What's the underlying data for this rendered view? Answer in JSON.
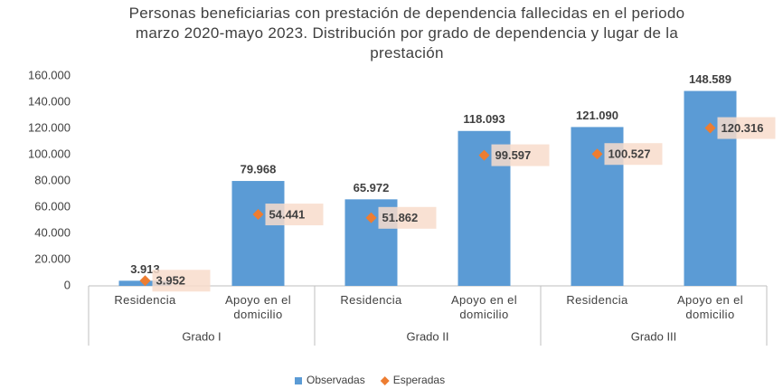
{
  "chart_data": {
    "type": "bar",
    "title": "Personas beneficiarias con prestación de dependencia fallecidas en el periodo marzo 2020-mayo 2023. Distribución por grado de dependencia y lugar de la prestación",
    "categories": [
      "Residencia",
      "Apoyo en el domicilio",
      "Residencia",
      "Apoyo en el domicilio",
      "Residencia",
      "Apoyo en el domicilio"
    ],
    "groups": [
      "Grado I",
      "Grado II",
      "Grado III"
    ],
    "series": [
      {
        "name": "Observadas",
        "color": "#5b9bd5",
        "mark": "bar",
        "values": [
          3913,
          79968,
          65972,
          118093,
          121090,
          148589
        ],
        "value_labels": [
          "3.913",
          "79.968",
          "65.972",
          "118.093",
          "121.090",
          "148.589"
        ]
      },
      {
        "name": "Esperadas",
        "color": "#ed7d31",
        "mark": "diamond",
        "values": [
          3952,
          54441,
          51862,
          99597,
          100527,
          120316
        ],
        "value_labels": [
          "3.952",
          "54.441",
          "51.862",
          "99.597",
          "100.527",
          "120.316"
        ]
      }
    ],
    "ylim": [
      0,
      160000
    ],
    "yticks": [
      0,
      {
        "value": 20000,
        "label": "20.000"
      },
      {
        "value": 40000,
        "label": "40.000"
      },
      {
        "value": 60000,
        "label": "60.000"
      },
      {
        "value": 80000,
        "label": "80.000"
      },
      {
        "value": 100000,
        "label": "100.000"
      },
      {
        "value": 120000,
        "label": "120.000"
      },
      {
        "value": 140000,
        "label": "140.000"
      },
      {
        "value": 160000,
        "label": "160.000"
      }
    ],
    "grid": false,
    "legend": "bottom"
  }
}
